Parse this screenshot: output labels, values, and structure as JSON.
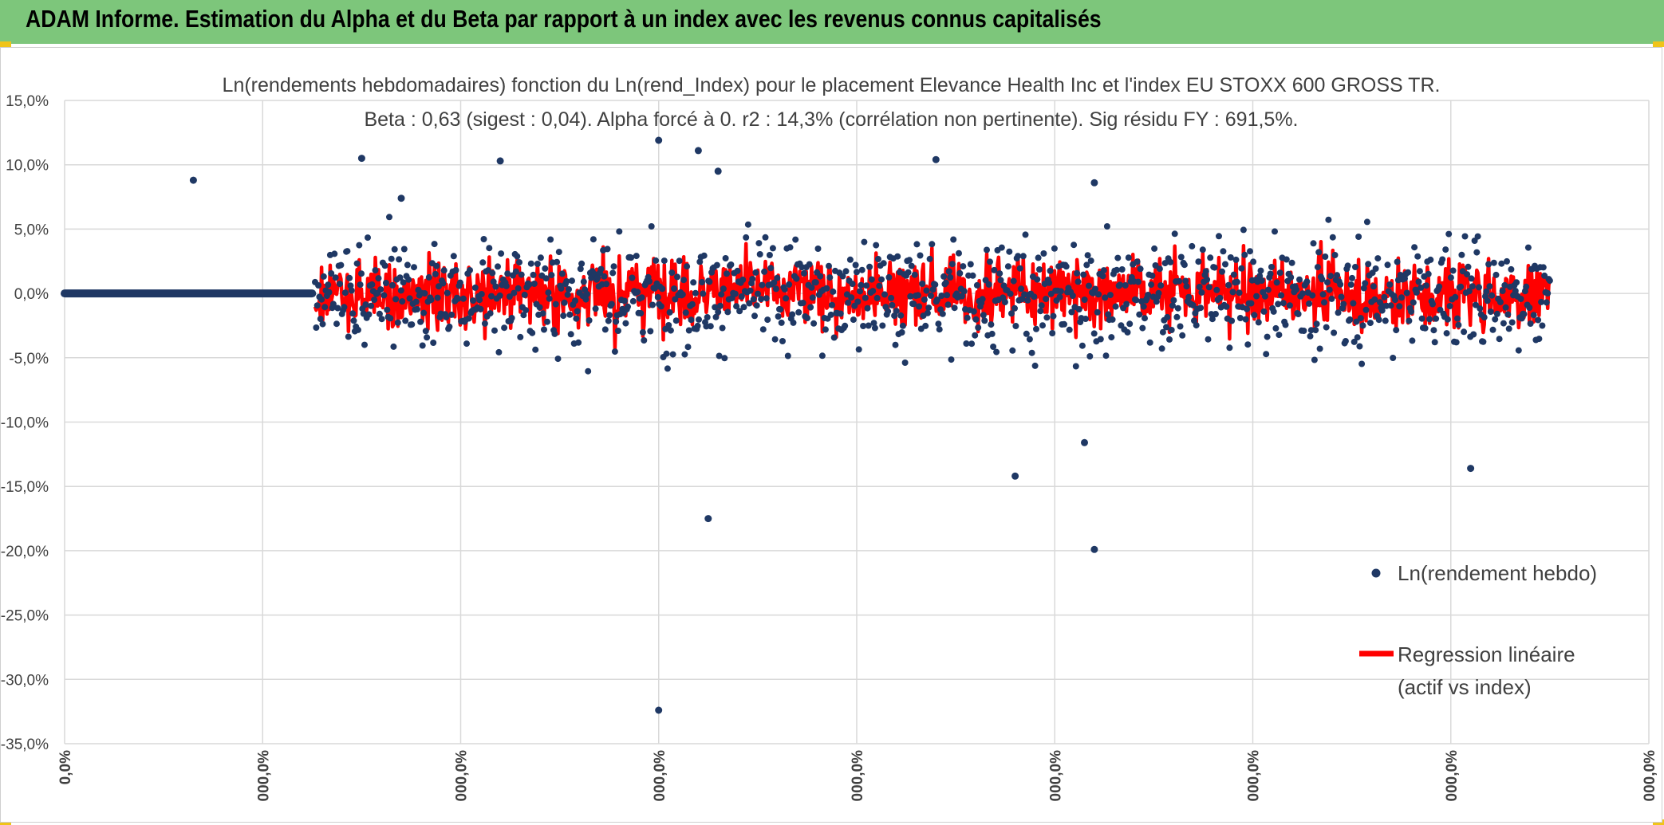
{
  "banner": {
    "title": "ADAM Informe. Estimation du Alpha et du Beta par rapport à un index avec les revenus connus capitalisés",
    "background": "#7dc67b"
  },
  "chart_data": {
    "type": "scatter",
    "title": "Ln(rendements hebdomadaires) fonction du Ln(rend_Index) pour le placement Elevance Health Inc et l'index EU STOXX 600 GROSS TR.",
    "subtitle": "Beta : 0,63 (sigest : 0,04). Alpha forcé à 0. r2 : 14,3% (corrélation non pertinente). Sig résidu FY : 691,5%.",
    "xlabel": "",
    "ylabel": "",
    "ylim": [
      -35,
      15
    ],
    "y_ticks": [
      "15,0%",
      "10,0%",
      "5,0%",
      "0,0%",
      "-5,0%",
      "-10,0%",
      "-15,0%",
      "-20,0%",
      "-25,0%",
      "-30,0%",
      "-35,0%"
    ],
    "x_ticks": [
      "0,0%",
      "000,0%",
      "000,0%",
      "000,0%",
      "000,0%",
      "000,0%",
      "000,0%",
      "000,0%",
      "000,0%"
    ],
    "grid": true,
    "legend_placement": "right",
    "series": [
      {
        "name": "Ln(rendement hebdo)",
        "kind": "points",
        "color": "#1f3864"
      },
      {
        "name": "Regression linéaire (actif vs index)",
        "kind": "line",
        "color": "#ff0000"
      }
    ],
    "legend": [
      {
        "label_lines": [
          "Ln(rendement hebdo)"
        ]
      },
      {
        "label_lines": [
          "Regression linéaire",
          "(actif vs index)"
        ]
      }
    ],
    "notable_points": [
      {
        "x": 0.6,
        "y": -32.4
      },
      {
        "x": 0.65,
        "y": -17.5
      },
      {
        "x": 1.04,
        "y": -19.9
      },
      {
        "x": 0.96,
        "y": -14.2
      },
      {
        "x": 1.42,
        "y": -13.6
      },
      {
        "x": 1.03,
        "y": -11.6
      },
      {
        "x": 0.3,
        "y": 10.5
      },
      {
        "x": 0.44,
        "y": 10.3
      },
      {
        "x": 0.6,
        "y": 11.9
      },
      {
        "x": 0.64,
        "y": 11.1
      },
      {
        "x": 0.88,
        "y": 10.4
      },
      {
        "x": 0.13,
        "y": 8.8
      },
      {
        "x": 1.04,
        "y": 8.6
      },
      {
        "x": 0.34,
        "y": 7.4
      },
      {
        "x": 0.66,
        "y": 9.5
      }
    ],
    "notes_x_range": [
      0,
      1.6
    ]
  }
}
